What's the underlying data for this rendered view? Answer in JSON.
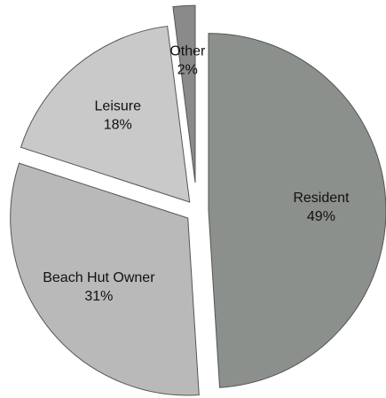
{
  "chart_data": {
    "type": "pie",
    "categories": [
      "Resident",
      "Beach Hut Owner",
      "Leisure",
      "Other"
    ],
    "values": [
      49,
      31,
      18,
      2
    ],
    "value_labels": [
      "49%",
      "31%",
      "18%",
      "2%"
    ],
    "colors": [
      "#8b908d",
      "#b9b9b9",
      "#c9c9c9",
      "#8a8a8a"
    ]
  }
}
